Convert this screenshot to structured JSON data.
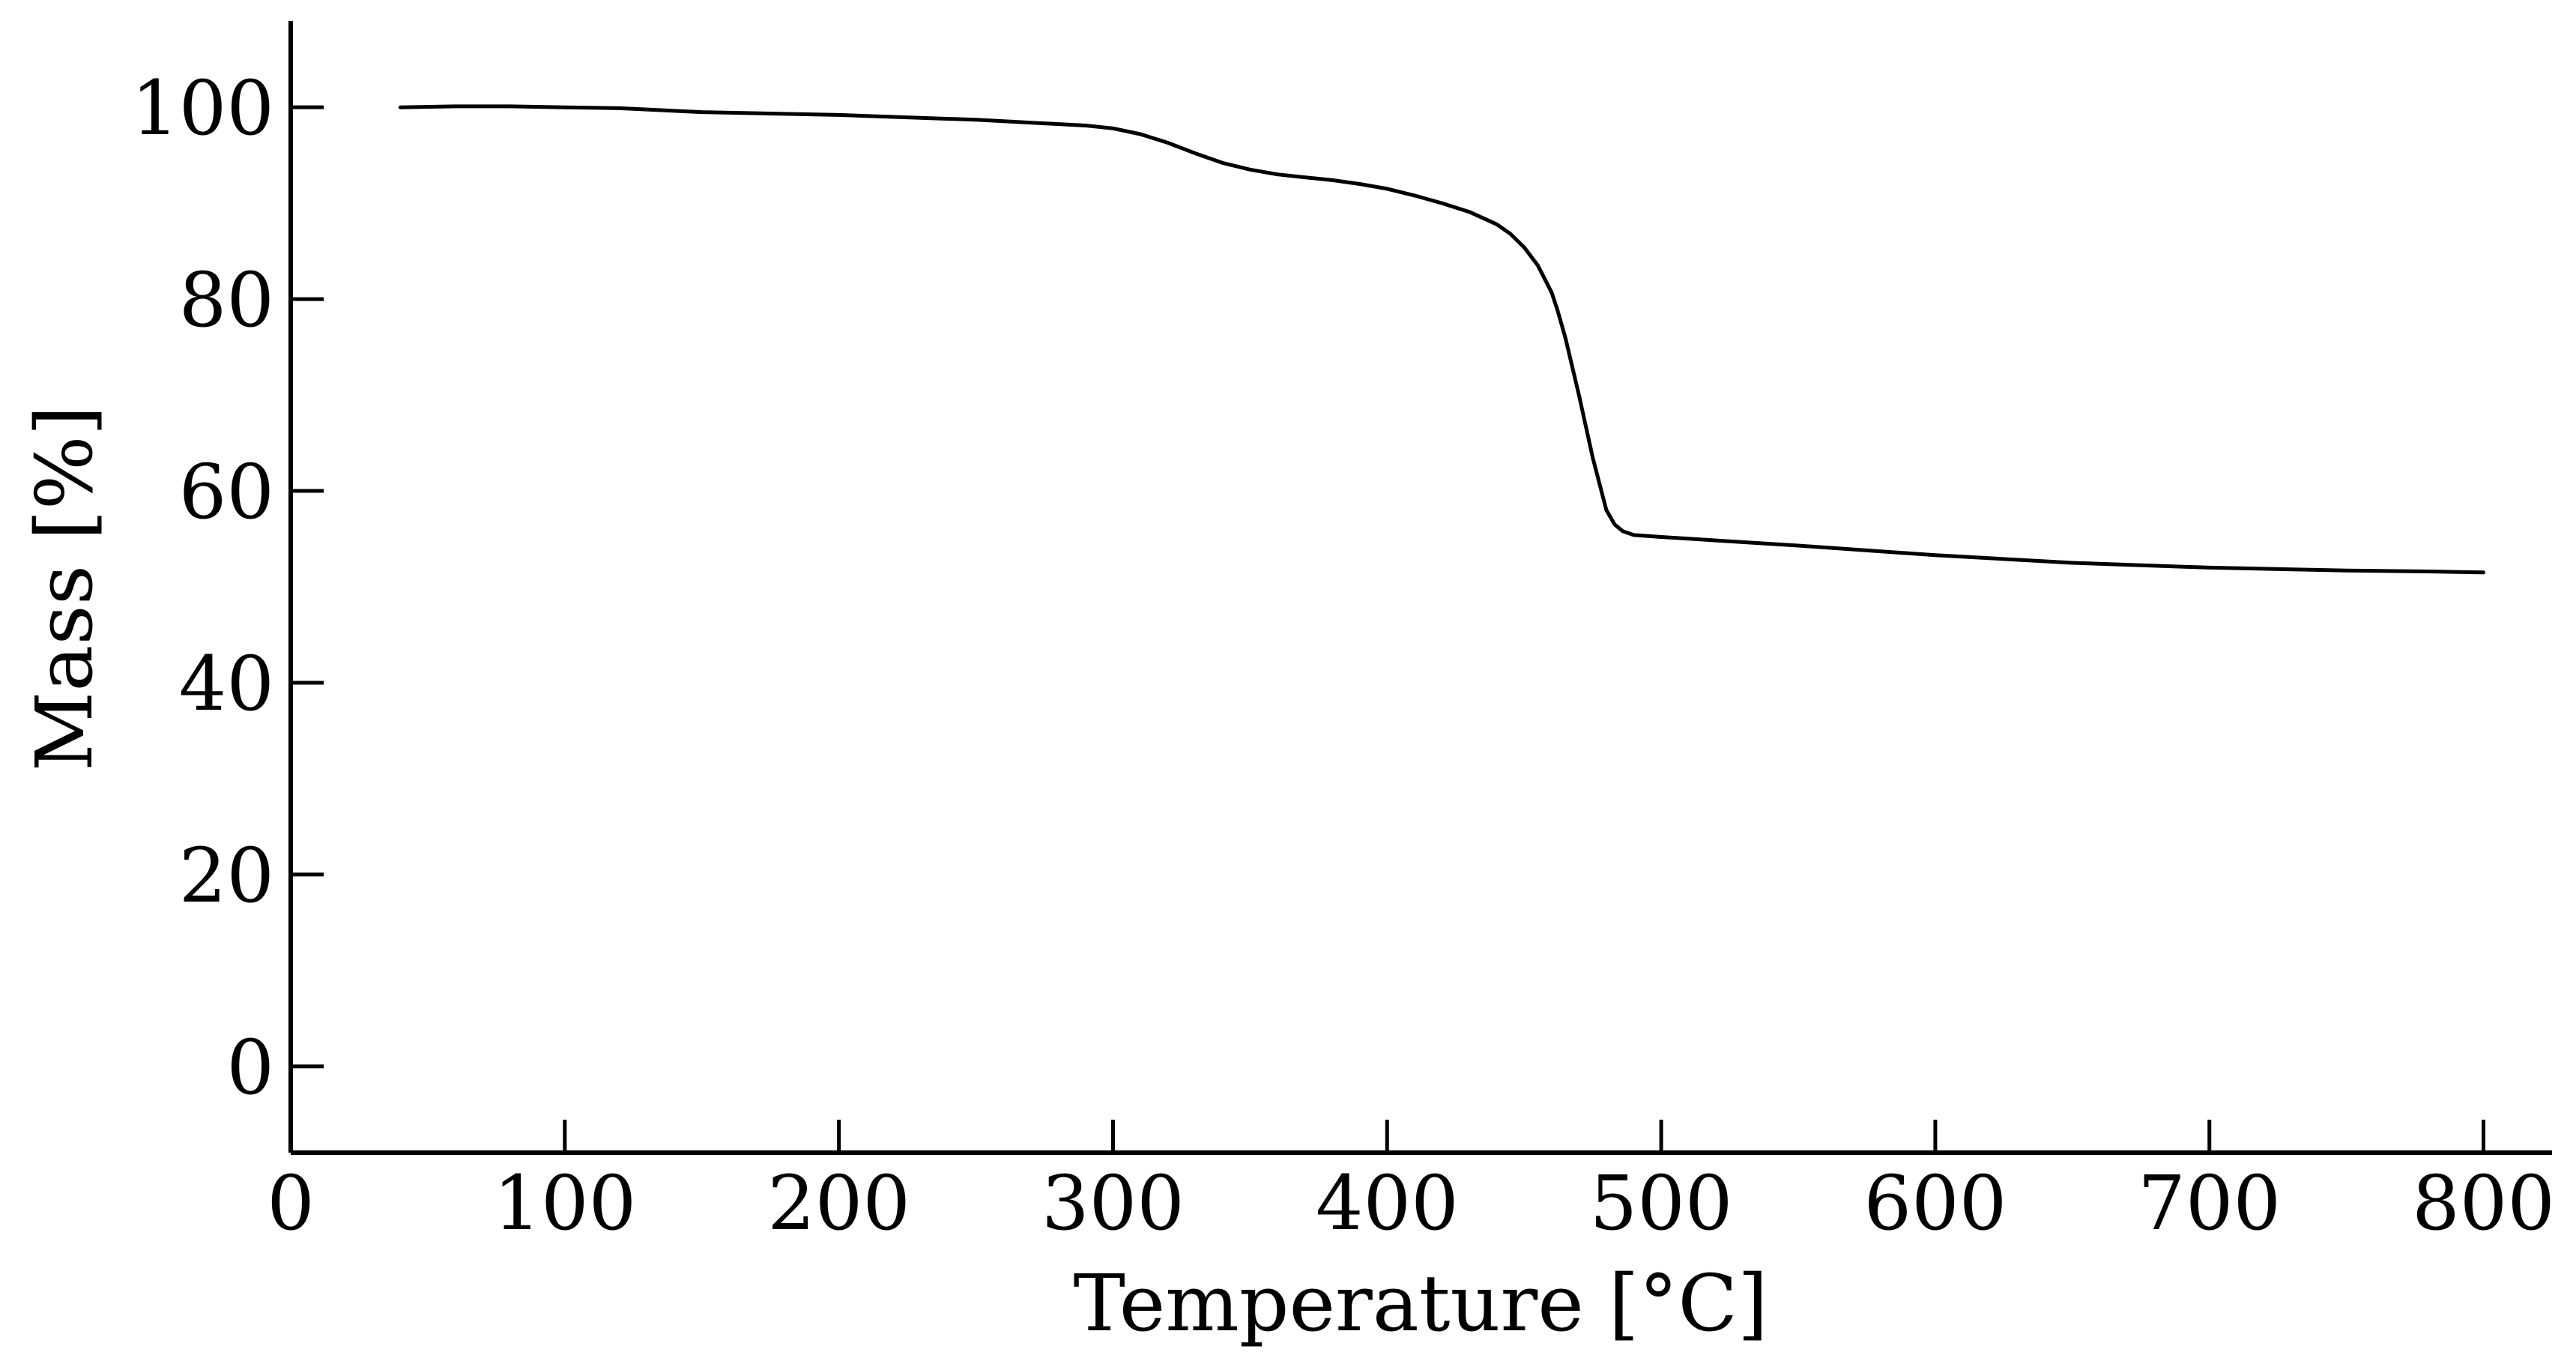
{
  "chart_data": {
    "type": "line",
    "title": "",
    "xlabel": "Temperature [°C]",
    "ylabel": "Mass [%]",
    "xlim": [
      0,
      825
    ],
    "ylim": [
      -9,
      109
    ],
    "xticks": [
      0,
      100,
      200,
      300,
      400,
      500,
      600,
      700,
      800
    ],
    "yticks": [
      0,
      20,
      40,
      60,
      80,
      100
    ],
    "grid": false,
    "legend": "none",
    "colors": {
      "line": "#000000",
      "axis": "#000000"
    },
    "series": [
      {
        "x": [
          40,
          60,
          80,
          100,
          120,
          150,
          200,
          250,
          290,
          300,
          310,
          320,
          330,
          340,
          350,
          360,
          370,
          380,
          390,
          400,
          410,
          420,
          430,
          440,
          445,
          450,
          455,
          460,
          462,
          465,
          470,
          475,
          480,
          483,
          486,
          490,
          500,
          550,
          600,
          650,
          700,
          750,
          780,
          800
        ],
        "y": [
          100,
          100.1,
          100.1,
          100,
          99.9,
          99.5,
          99.2,
          98.7,
          98.1,
          97.8,
          97.2,
          96.3,
          95.2,
          94.2,
          93.5,
          93.0,
          92.7,
          92.4,
          92.0,
          91.5,
          90.8,
          90.0,
          89.1,
          87.8,
          86.8,
          85.4,
          83.5,
          80.7,
          79.0,
          76.0,
          70.0,
          63.5,
          58.0,
          56.5,
          55.8,
          55.4,
          55.2,
          54.3,
          53.3,
          52.5,
          52.0,
          51.7,
          51.6,
          51.5
        ]
      }
    ]
  }
}
